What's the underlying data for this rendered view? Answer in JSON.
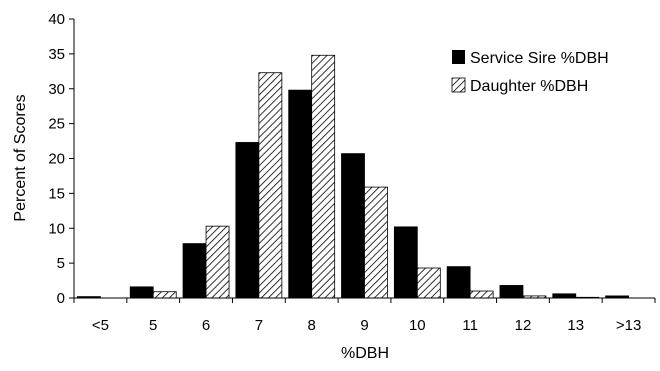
{
  "chart_data": {
    "type": "bar",
    "xlabel": "%DBH",
    "ylabel": "Percent of Scores",
    "ylim": [
      0,
      40
    ],
    "yticks": [
      0,
      5,
      10,
      15,
      20,
      25,
      30,
      35,
      40
    ],
    "categories": [
      "<5",
      "5",
      "6",
      "7",
      "8",
      "9",
      "10",
      "11",
      "12",
      "13",
      ">13"
    ],
    "series": [
      {
        "name": "Service Sire %DBH",
        "fill": "solid",
        "color": "#000000",
        "values": [
          0.2,
          1.6,
          7.8,
          22.3,
          29.8,
          20.7,
          10.2,
          4.5,
          1.8,
          0.6,
          0.3
        ]
      },
      {
        "name": "Daughter %DBH",
        "fill": "hatched",
        "color": "#000000",
        "values": [
          0,
          0.9,
          10.3,
          32.3,
          34.8,
          15.9,
          4.3,
          1.0,
          0.3,
          0.1,
          0
        ]
      }
    ],
    "legend_position": "top-right",
    "grid": false
  }
}
